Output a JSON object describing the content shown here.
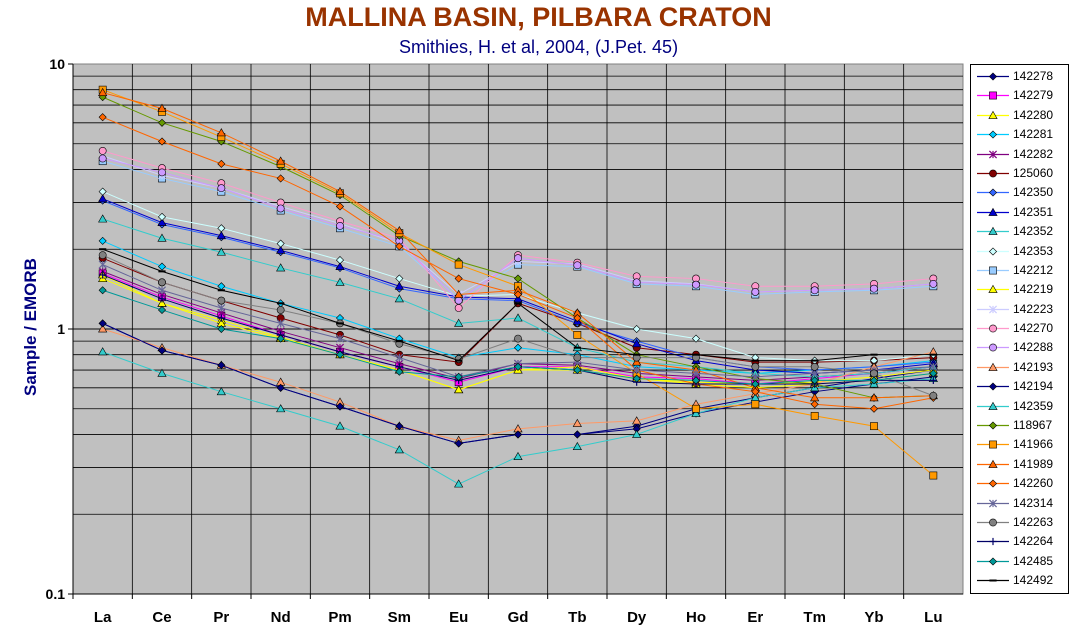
{
  "chart_data": {
    "type": "line",
    "title": "MALLINA BASIN, PILBARA CRATON",
    "subtitle": "Smithies, H. et al, 2004, (J.Pet. 45)",
    "ylabel": "Sample / EMORB",
    "xlabel": "",
    "yscale": "log",
    "ylim": [
      0.1,
      10
    ],
    "y_tick_labels": [
      "0.1",
      "1",
      "10"
    ],
    "grid": true,
    "legend_position": "right",
    "plot_background": "#c0c0c0",
    "categories": [
      "La",
      "Ce",
      "Pr",
      "Nd",
      "Pm",
      "Sm",
      "Eu",
      "Gd",
      "Tb",
      "Dy",
      "Ho",
      "Er",
      "Tm",
      "Yb",
      "Lu"
    ],
    "series": [
      {
        "name": "142278",
        "color": "#000080",
        "marker": "diamond",
        "values": [
          1.05,
          0.83,
          0.73,
          0.6,
          0.51,
          0.43,
          0.37,
          0.4,
          0.4,
          0.43,
          0.5,
          0.55,
          0.6,
          0.65,
          0.7
        ]
      },
      {
        "name": "142279",
        "color": "#ff00ff",
        "marker": "square",
        "values": [
          1.62,
          1.32,
          1.12,
          0.95,
          0.82,
          0.72,
          0.63,
          0.72,
          0.72,
          0.66,
          0.65,
          0.62,
          0.65,
          0.68,
          0.72
        ]
      },
      {
        "name": "142280",
        "color": "#ffff00",
        "marker": "triangle",
        "values": [
          1.55,
          1.25,
          1.08,
          0.93,
          0.8,
          0.7,
          0.59,
          0.7,
          0.7,
          0.65,
          0.63,
          0.62,
          0.63,
          0.66,
          0.7
        ]
      },
      {
        "name": "142281",
        "color": "#00ccff",
        "marker": "diamond",
        "values": [
          2.15,
          1.72,
          1.45,
          1.25,
          1.1,
          0.92,
          0.78,
          0.85,
          0.8,
          0.72,
          0.7,
          0.68,
          0.7,
          0.72,
          0.76
        ]
      },
      {
        "name": "142282",
        "color": "#800080",
        "marker": "x",
        "values": [
          1.65,
          1.35,
          1.15,
          0.98,
          0.85,
          0.74,
          0.65,
          0.74,
          0.73,
          0.68,
          0.66,
          0.64,
          0.66,
          0.68,
          0.72
        ]
      },
      {
        "name": "125060",
        "color": "#800000",
        "marker": "circle",
        "values": [
          1.85,
          1.5,
          1.28,
          1.1,
          0.95,
          0.8,
          0.75,
          1.25,
          1.05,
          0.85,
          0.8,
          0.75,
          0.75,
          0.76,
          0.78
        ]
      },
      {
        "name": "142350",
        "color": "#3366ff",
        "marker": "diamond",
        "values": [
          3.05,
          2.48,
          2.22,
          1.95,
          1.7,
          1.42,
          1.3,
          1.28,
          1.05,
          0.9,
          0.78,
          0.72,
          0.7,
          0.72,
          0.75
        ]
      },
      {
        "name": "142351",
        "color": "#0000cc",
        "marker": "triangle",
        "values": [
          3.1,
          2.52,
          2.25,
          1.98,
          1.72,
          1.45,
          1.32,
          1.3,
          1.07,
          0.88,
          0.76,
          0.7,
          0.68,
          0.7,
          0.74
        ]
      },
      {
        "name": "142352",
        "color": "#33cccc",
        "marker": "triangle",
        "values": [
          2.6,
          2.2,
          1.95,
          1.7,
          1.5,
          1.3,
          1.05,
          1.1,
          0.85,
          0.75,
          0.72,
          0.68,
          0.66,
          0.68,
          0.72
        ]
      },
      {
        "name": "142353",
        "color": "#ccffff",
        "marker": "diamond",
        "values": [
          3.3,
          2.65,
          2.4,
          2.1,
          1.82,
          1.55,
          1.33,
          1.35,
          1.15,
          1.0,
          0.92,
          0.78,
          0.76,
          0.76,
          0.8
        ]
      },
      {
        "name": "142212",
        "color": "#99ccff",
        "marker": "square",
        "values": [
          4.3,
          3.7,
          3.3,
          2.8,
          2.4,
          2.05,
          1.3,
          1.75,
          1.72,
          1.48,
          1.45,
          1.35,
          1.38,
          1.4,
          1.45
        ]
      },
      {
        "name": "142219",
        "color": "#ffff00",
        "marker": "triangle",
        "values": [
          1.6,
          1.25,
          1.05,
          0.92,
          0.8,
          0.7,
          0.59,
          0.7,
          0.72,
          0.65,
          0.62,
          0.6,
          0.62,
          0.64,
          0.68
        ]
      },
      {
        "name": "142223",
        "color": "#ccccff",
        "marker": "x",
        "values": [
          4.5,
          3.8,
          3.4,
          2.9,
          2.5,
          2.1,
          1.35,
          1.8,
          1.76,
          1.52,
          1.48,
          1.38,
          1.4,
          1.42,
          1.48
        ]
      },
      {
        "name": "142270",
        "color": "#ff99cc",
        "marker": "circle",
        "values": [
          4.7,
          4.05,
          3.55,
          3.0,
          2.55,
          2.2,
          1.2,
          1.9,
          1.78,
          1.58,
          1.55,
          1.45,
          1.45,
          1.48,
          1.55
        ]
      },
      {
        "name": "142288",
        "color": "#cc99ff",
        "marker": "circle",
        "values": [
          4.4,
          3.9,
          3.4,
          2.85,
          2.45,
          2.15,
          1.28,
          1.85,
          1.74,
          1.5,
          1.47,
          1.38,
          1.4,
          1.42,
          1.48
        ]
      },
      {
        "name": "142193",
        "color": "#ff9966",
        "marker": "triangle",
        "values": [
          1.0,
          0.85,
          0.73,
          0.63,
          0.53,
          0.43,
          0.38,
          0.42,
          0.44,
          0.45,
          0.52,
          0.57,
          0.62,
          0.72,
          0.82
        ]
      },
      {
        "name": "142194",
        "color": "#000080",
        "marker": "diamond",
        "values": [
          1.05,
          0.83,
          0.73,
          0.6,
          0.51,
          0.43,
          0.37,
          0.4,
          0.4,
          0.42,
          0.48,
          0.53,
          0.58,
          0.62,
          0.66
        ]
      },
      {
        "name": "142359",
        "color": "#33cccc",
        "marker": "triangle",
        "values": [
          0.82,
          0.68,
          0.58,
          0.5,
          0.43,
          0.35,
          0.26,
          0.33,
          0.36,
          0.4,
          0.48,
          0.55,
          0.6,
          0.62,
          0.65
        ]
      },
      {
        "name": "118967",
        "color": "#669900",
        "marker": "diamond",
        "values": [
          7.5,
          6.0,
          5.1,
          4.1,
          3.2,
          2.25,
          1.8,
          1.55,
          1.1,
          0.8,
          0.72,
          0.65,
          0.62,
          0.55,
          0.56
        ]
      },
      {
        "name": "141966",
        "color": "#ff9900",
        "marker": "square",
        "values": [
          8.0,
          6.6,
          5.3,
          4.2,
          3.25,
          2.3,
          1.75,
          1.45,
          0.95,
          0.68,
          0.5,
          0.52,
          0.47,
          0.43,
          0.28
        ]
      },
      {
        "name": "141989",
        "color": "#ff6600",
        "marker": "triangle",
        "values": [
          7.8,
          6.8,
          5.5,
          4.3,
          3.3,
          2.35,
          1.35,
          1.4,
          1.15,
          0.75,
          0.7,
          0.6,
          0.55,
          0.55,
          0.56
        ]
      },
      {
        "name": "142260",
        "color": "#ff6600",
        "marker": "diamond",
        "values": [
          6.3,
          5.1,
          4.2,
          3.7,
          2.9,
          2.05,
          1.55,
          1.35,
          1.1,
          0.7,
          0.62,
          0.58,
          0.52,
          0.5,
          0.55
        ]
      },
      {
        "name": "142314",
        "color": "#666699",
        "marker": "x",
        "values": [
          1.75,
          1.4,
          1.2,
          1.05,
          0.92,
          0.78,
          0.66,
          0.74,
          0.75,
          0.7,
          0.68,
          0.66,
          0.68,
          0.7,
          0.72
        ]
      },
      {
        "name": "142263",
        "color": "#808080",
        "marker": "circle",
        "values": [
          1.9,
          1.5,
          1.28,
          1.18,
          1.05,
          0.88,
          0.77,
          0.92,
          0.78,
          0.78,
          0.78,
          0.72,
          0.72,
          0.68,
          0.56
        ]
      },
      {
        "name": "142264",
        "color": "#000066",
        "marker": "plus",
        "values": [
          1.6,
          1.3,
          1.1,
          0.95,
          0.82,
          0.72,
          0.64,
          0.72,
          0.7,
          0.63,
          0.62,
          0.62,
          0.62,
          0.64,
          0.64
        ]
      },
      {
        "name": "142485",
        "color": "#009999",
        "marker": "diamond",
        "values": [
          1.4,
          1.18,
          1.0,
          0.92,
          0.8,
          0.69,
          0.66,
          0.72,
          0.7,
          0.65,
          0.64,
          0.62,
          0.64,
          0.64,
          0.68
        ]
      },
      {
        "name": "142492",
        "color": "#000000",
        "marker": "dash",
        "values": [
          2.0,
          1.65,
          1.4,
          1.25,
          1.05,
          0.9,
          0.76,
          1.25,
          0.85,
          0.8,
          0.8,
          0.76,
          0.76,
          0.8,
          0.8
        ]
      }
    ]
  }
}
